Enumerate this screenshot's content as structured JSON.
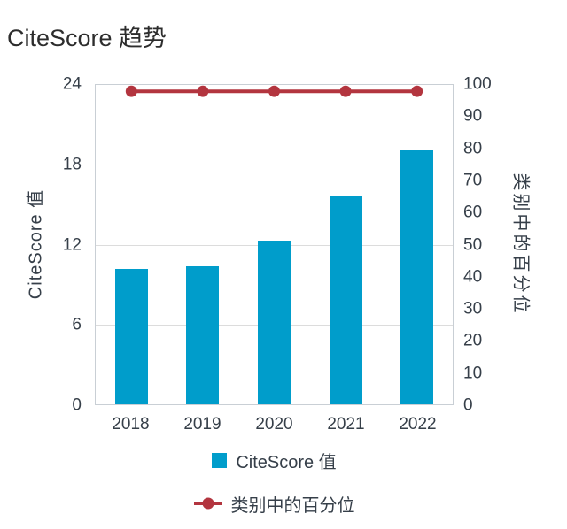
{
  "title": "CiteScore 趋势",
  "colors": {
    "bar": "#009DCB",
    "line": "#B3353F",
    "grid": "#DCDCDC",
    "border": "#C9CFD5",
    "tick": "#363F49",
    "title": "#2D2D2D"
  },
  "chart_data": {
    "type": "bar",
    "title": "CiteScore 趋势",
    "categories": [
      "2018",
      "2019",
      "2020",
      "2021",
      "2022"
    ],
    "series": [
      {
        "name": "CiteScore 值",
        "type": "bar",
        "axis": "left",
        "values": [
          10.2,
          10.4,
          12.3,
          15.6,
          19.1
        ]
      },
      {
        "name": "类别中的百分位",
        "type": "line",
        "axis": "right",
        "values": [
          98,
          98,
          98,
          98,
          98
        ]
      }
    ],
    "left_axis": {
      "label": "CiteScore 值",
      "ticks": [
        0,
        6,
        12,
        18,
        24
      ],
      "range": [
        0,
        24
      ]
    },
    "right_axis": {
      "label": "类别中的百分位",
      "ticks": [
        0,
        10,
        20,
        30,
        40,
        50,
        60,
        70,
        80,
        90,
        100
      ],
      "range": [
        0,
        100
      ]
    },
    "legend": [
      {
        "label": "CiteScore 值",
        "marker": "square"
      },
      {
        "label": "类别中的百分位",
        "marker": "line-dot"
      }
    ],
    "grid": "horizontal-only",
    "legend_position": "bottom-center"
  }
}
